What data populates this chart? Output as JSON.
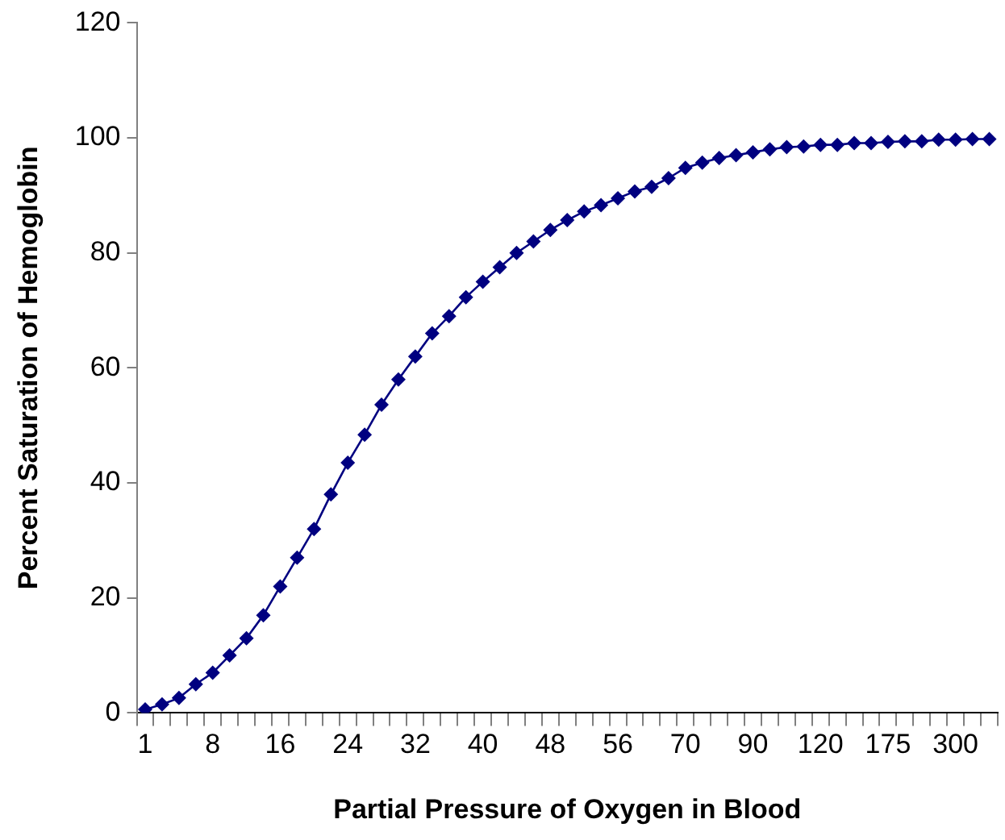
{
  "chart_data": {
    "type": "line",
    "xlabel": "Partial Pressure of Oxygen in Blood",
    "ylabel": "Percent Saturation of Hemoglobin",
    "categories": [
      "1",
      null,
      null,
      null,
      "8",
      null,
      null,
      null,
      "16",
      null,
      null,
      null,
      "24",
      null,
      null,
      null,
      "32",
      null,
      null,
      null,
      "40",
      null,
      null,
      null,
      "48",
      null,
      null,
      null,
      "56",
      null,
      null,
      null,
      "70",
      null,
      null,
      null,
      "90",
      null,
      null,
      null,
      "120",
      null,
      null,
      null,
      "175",
      null,
      null,
      null,
      "300",
      null,
      null
    ],
    "series": [
      {
        "color": "#000080",
        "values": [
          0.6,
          1.5,
          2.6,
          5,
          7,
          10,
          13,
          17,
          22,
          27,
          32,
          38,
          43.5,
          48.4,
          53.6,
          58,
          62,
          66,
          69,
          72.3,
          75,
          77.5,
          80,
          82,
          84,
          85.7,
          87.2,
          88.3,
          89.5,
          90.7,
          91.5,
          93,
          94.8,
          95.7,
          96.5,
          97,
          97.5,
          98,
          98.4,
          98.5,
          98.8,
          98.8,
          99.1,
          99.1,
          99.3,
          99.4,
          99.4,
          99.7,
          99.7,
          99.8,
          99.8
        ]
      }
    ],
    "ylim": [
      0,
      120
    ],
    "yticks": [
      0,
      20,
      40,
      60,
      80,
      100,
      120
    ],
    "marker": "diamond",
    "grid": false,
    "legend": false
  }
}
